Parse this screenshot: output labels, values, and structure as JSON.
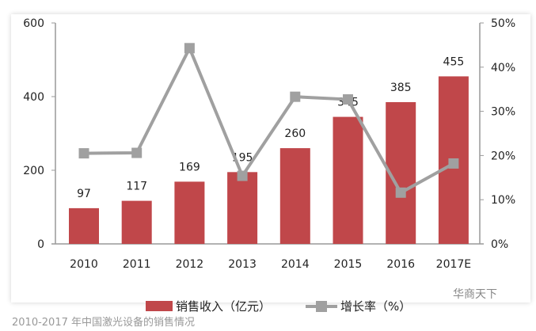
{
  "chart_data": {
    "type": "bar+line",
    "categories": [
      "2010",
      "2011",
      "2012",
      "2013",
      "2014",
      "2015",
      "2016",
      "2017E"
    ],
    "series": [
      {
        "name": "销售收入（亿元）",
        "type": "bar",
        "axis": "left",
        "values": [
          97,
          117,
          169,
          195,
          260,
          345,
          385,
          455
        ],
        "color": "#c0474a"
      },
      {
        "name": "增长率（%）",
        "type": "line",
        "axis": "right",
        "values": [
          20.5,
          20.6,
          44.3,
          15.4,
          33.3,
          32.7,
          11.6,
          18.2
        ],
        "color": "#a0a0a0"
      }
    ],
    "left_axis": {
      "ylim": [
        0,
        600
      ],
      "ticks": [
        "0",
        "200",
        "400",
        "600"
      ]
    },
    "right_axis": {
      "ylim": [
        0,
        50
      ],
      "ticks": [
        "0%",
        "10%",
        "20%",
        "30%",
        "40%",
        "50%"
      ]
    },
    "legend_position": "bottom"
  },
  "legend": {
    "bar": "销售收入（亿元）",
    "line": "增长率（%）"
  },
  "watermark": "华商天下",
  "caption": "2010-2017 年中国激光设备的销售情况"
}
